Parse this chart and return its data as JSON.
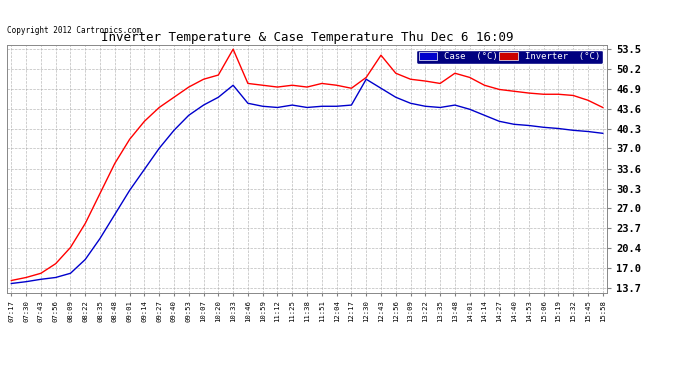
{
  "title": "Inverter Temperature & Case Temperature Thu Dec 6 16:09",
  "copyright": "Copyright 2012 Cartronics.com",
  "bg_color": "#ffffff",
  "plot_bg_color": "#ffffff",
  "grid_color": "#aaaaaa",
  "text_color": "#000000",
  "y_ticks": [
    13.7,
    17.0,
    20.4,
    23.7,
    27.0,
    30.3,
    33.6,
    37.0,
    40.3,
    43.6,
    46.9,
    50.2,
    53.5
  ],
  "ylim_low": 13.0,
  "ylim_high": 54.2,
  "x_labels": [
    "07:17",
    "07:30",
    "07:43",
    "07:56",
    "08:09",
    "08:22",
    "08:35",
    "08:48",
    "09:01",
    "09:14",
    "09:27",
    "09:40",
    "09:53",
    "10:07",
    "10:20",
    "10:33",
    "10:46",
    "10:59",
    "11:12",
    "11:25",
    "11:38",
    "11:51",
    "12:04",
    "12:17",
    "12:30",
    "12:43",
    "12:56",
    "13:09",
    "13:22",
    "13:35",
    "13:48",
    "14:01",
    "14:14",
    "14:27",
    "14:40",
    "14:53",
    "15:06",
    "15:19",
    "15:32",
    "15:45",
    "15:58"
  ],
  "case_color": "#ff0000",
  "inverter_color": "#0000cc",
  "legend_case_bg": "#0000cc",
  "legend_inverter_bg": "#cc0000",
  "case_data": [
    15.0,
    15.5,
    16.2,
    17.8,
    20.5,
    24.5,
    29.5,
    34.5,
    38.5,
    41.5,
    43.8,
    45.5,
    47.2,
    48.5,
    49.2,
    53.5,
    47.8,
    47.5,
    47.2,
    47.5,
    47.2,
    47.8,
    47.5,
    47.0,
    48.8,
    52.5,
    49.5,
    48.5,
    48.2,
    47.8,
    49.5,
    48.8,
    47.5,
    46.8,
    46.5,
    46.2,
    46.0,
    46.0,
    45.8,
    45.0,
    43.8
  ],
  "inverter_data": [
    14.5,
    14.8,
    15.2,
    15.5,
    16.2,
    18.5,
    22.0,
    26.0,
    30.0,
    33.5,
    37.0,
    40.0,
    42.5,
    44.2,
    45.5,
    47.5,
    44.5,
    44.0,
    43.8,
    44.2,
    43.8,
    44.0,
    44.0,
    44.2,
    48.5,
    47.0,
    45.5,
    44.5,
    44.0,
    43.8,
    44.2,
    43.5,
    42.5,
    41.5,
    41.0,
    40.8,
    40.5,
    40.3,
    40.0,
    39.8,
    39.5
  ]
}
